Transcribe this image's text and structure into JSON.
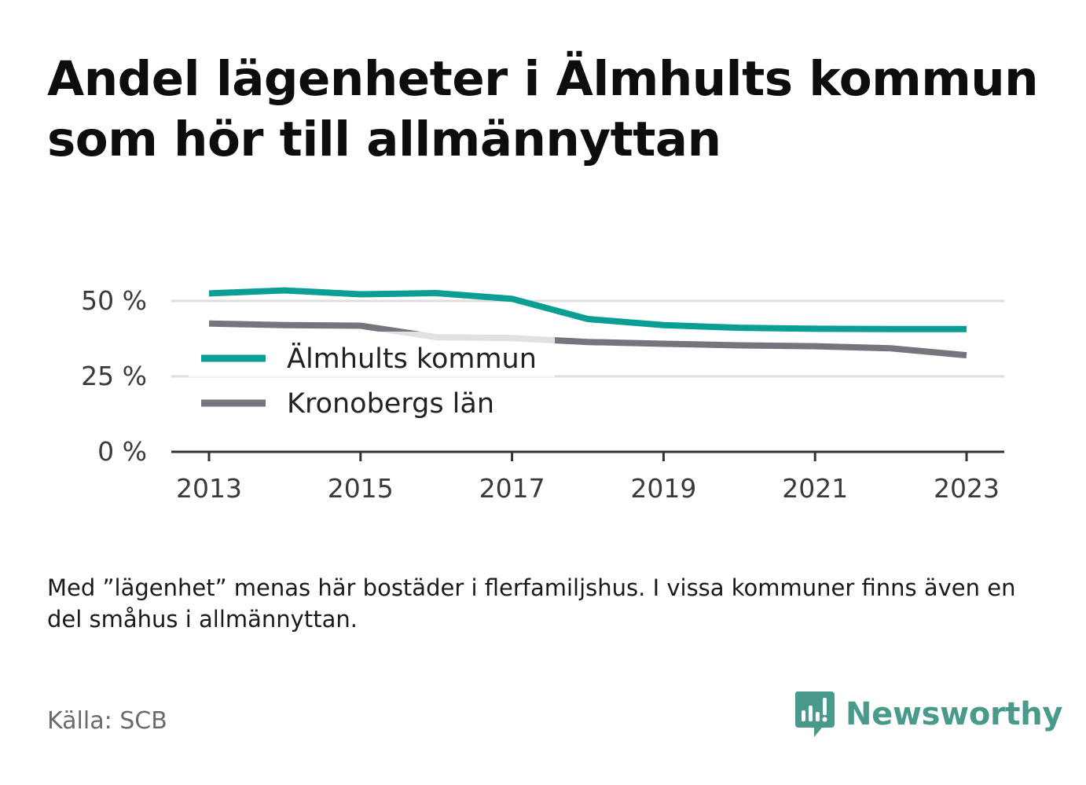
{
  "title": {
    "line1": "Andel lägenheter i Älmhults kommun",
    "line2": "som hör till allmännyttan"
  },
  "note": "Med ”lägenhet” menas här bostäder i flerfamiljshus. I vissa kommuner finns även en del småhus i allmännyttan.",
  "source": "Källa: SCB",
  "brand": {
    "name": "Newsworthy",
    "icon": "newsworthy-logo-icon",
    "color": "#4a9a8c"
  },
  "chart_data": {
    "type": "line",
    "title": "Andel lägenheter i Älmhults kommun som hör till allmännyttan",
    "xlabel": "",
    "ylabel": "",
    "x": [
      2013,
      2014,
      2015,
      2016,
      2017,
      2018,
      2019,
      2020,
      2021,
      2022,
      2023
    ],
    "x_ticks": [
      "2013",
      "2015",
      "2017",
      "2019",
      "2021",
      "2023"
    ],
    "y_ticks": [
      "0 %",
      "25 %",
      "50 %"
    ],
    "ylim": [
      0,
      50
    ],
    "grid": true,
    "legend": "inside-left",
    "series": [
      {
        "name": "Älmhults kommun",
        "color": "#0a9e95",
        "values": [
          52.5,
          53.5,
          52.2,
          52.6,
          50.7,
          44.0,
          42.0,
          41.1,
          40.8,
          40.7,
          40.7
        ]
      },
      {
        "name": "Kronobergs län",
        "color": "#75757e",
        "values": [
          42.5,
          42.0,
          41.8,
          38.0,
          37.7,
          36.4,
          35.8,
          35.3,
          35.0,
          34.3,
          32.0
        ]
      }
    ]
  }
}
